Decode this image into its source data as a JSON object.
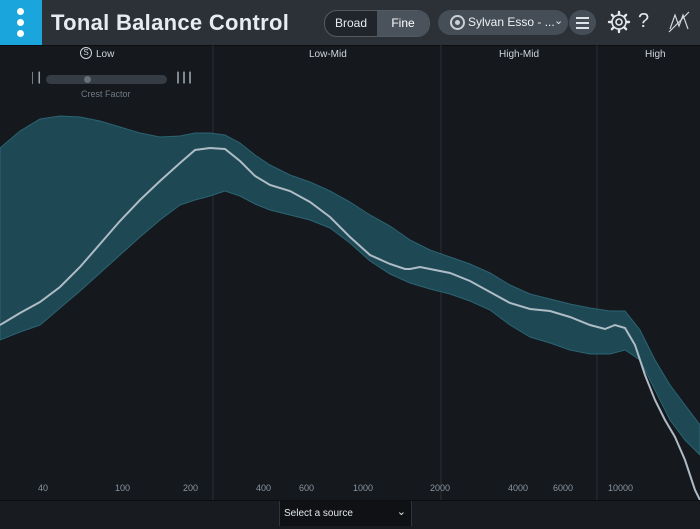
{
  "header": {
    "title": "Tonal Balance Control",
    "view_mode": {
      "broad": "Broad",
      "fine": "Fine",
      "selected": "Fine"
    },
    "preset": {
      "label": "Sylvan Esso - ..."
    },
    "icons": {
      "logo": "kebab-icon",
      "menu": "hamburger-icon",
      "settings": "gear-icon",
      "help": "question-icon",
      "brand": "izotope-icon"
    }
  },
  "bands": [
    {
      "label": "Low",
      "solo": "S"
    },
    {
      "label": "Low-Mid"
    },
    {
      "label": "High-Mid"
    },
    {
      "label": "High"
    }
  ],
  "crest": {
    "label": "Crest Factor",
    "value": 0.33
  },
  "frequency_axis": [
    "40",
    "100",
    "200",
    "400",
    "600",
    "1000",
    "2000",
    "4000",
    "6000",
    "10000"
  ],
  "source_selector": {
    "label": "Select a source"
  },
  "colors": {
    "accent": "#1aa6dc",
    "band": "#1f4d59",
    "curve": "#aebcc6",
    "background": "#15181d"
  }
}
